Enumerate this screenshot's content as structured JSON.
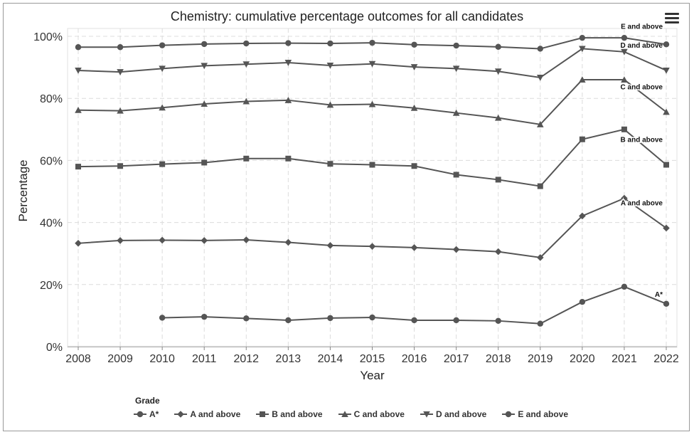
{
  "title": "Chemistry: cumulative percentage outcomes for all candidates",
  "menu_icon": "hamburger-menu-icon",
  "legend_title": "Grade",
  "chart_data": {
    "type": "line",
    "title": "Chemistry: cumulative percentage outcomes for all candidates",
    "xlabel": "Year",
    "ylabel": "Percentage",
    "x": [
      2008,
      2009,
      2010,
      2011,
      2012,
      2013,
      2014,
      2015,
      2016,
      2017,
      2018,
      2019,
      2020,
      2021,
      2022
    ],
    "ylim": [
      0,
      100
    ],
    "yticks": [
      "0%",
      "20%",
      "40%",
      "60%",
      "80%",
      "100%"
    ],
    "grid": true,
    "legend_position": "bottom",
    "line_color": "#555555",
    "series": [
      {
        "name": "A*",
        "marker": "circle",
        "end_label": "A*",
        "values": [
          null,
          null,
          9.3,
          9.6,
          9.1,
          8.5,
          9.2,
          9.4,
          8.5,
          8.5,
          8.3,
          7.4,
          14.4,
          19.3,
          13.8
        ]
      },
      {
        "name": "A and above",
        "marker": "diamond",
        "end_label": "A and above",
        "values": [
          33.3,
          34.2,
          34.3,
          34.2,
          34.4,
          33.6,
          32.6,
          32.3,
          31.9,
          31.3,
          30.6,
          28.7,
          42.1,
          47.8,
          38.2
        ]
      },
      {
        "name": "B and above",
        "marker": "square",
        "end_label": "B and above",
        "values": [
          58.0,
          58.2,
          58.8,
          59.3,
          60.6,
          60.6,
          58.9,
          58.6,
          58.2,
          55.4,
          53.8,
          51.7,
          66.8,
          70.0,
          58.6
        ]
      },
      {
        "name": "C and above",
        "marker": "triangle-up",
        "end_label": "C and above",
        "values": [
          76.2,
          76.0,
          77.0,
          78.2,
          79.0,
          79.4,
          77.9,
          78.1,
          76.9,
          75.3,
          73.7,
          71.6,
          86.0,
          86.0,
          75.6
        ]
      },
      {
        "name": "D and above",
        "marker": "triangle-down",
        "end_label": "D and above",
        "values": [
          89.0,
          88.5,
          89.6,
          90.5,
          91.0,
          91.5,
          90.6,
          91.1,
          90.1,
          89.6,
          88.7,
          86.7,
          96.0,
          95.0,
          89.0
        ]
      },
      {
        "name": "E and above",
        "marker": "circle",
        "end_label": "E and above",
        "values": [
          96.5,
          96.5,
          97.1,
          97.5,
          97.7,
          97.8,
          97.7,
          97.9,
          97.3,
          97.0,
          96.6,
          96.0,
          99.5,
          99.5,
          97.4
        ]
      }
    ]
  }
}
